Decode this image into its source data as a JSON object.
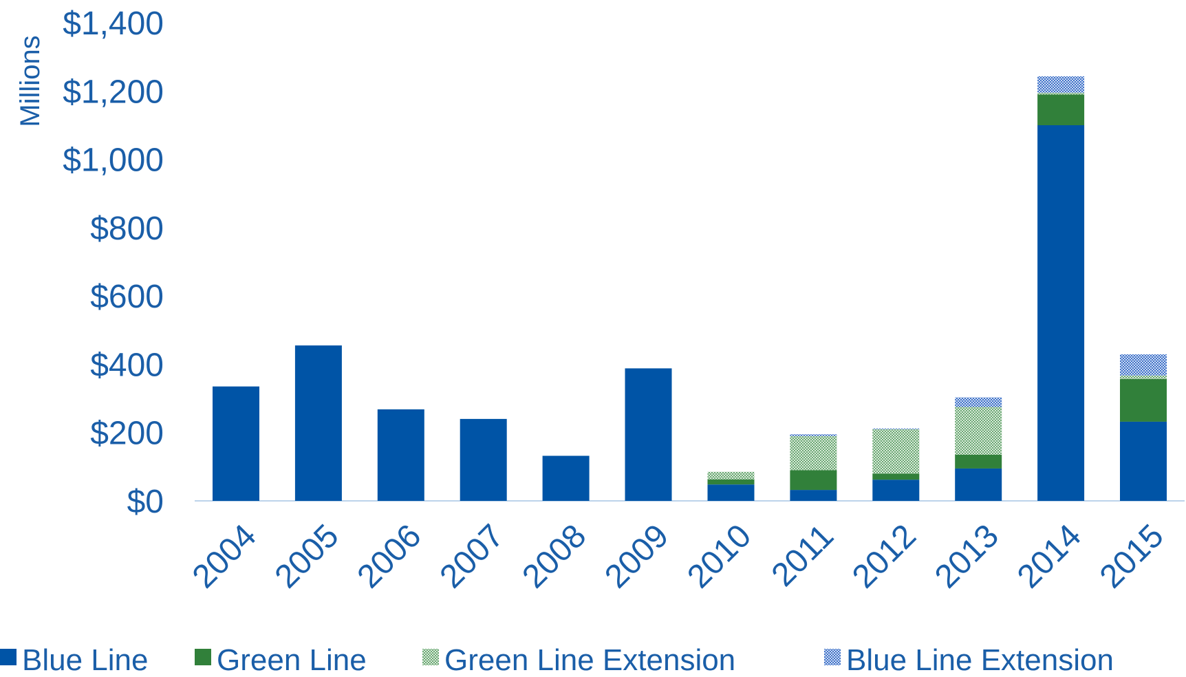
{
  "chart_data": {
    "type": "bar",
    "stacked": true,
    "title": "",
    "xlabel": "",
    "ylabel": "Millions",
    "ylim": [
      0,
      1400
    ],
    "yticks": [
      "$0",
      "$200",
      "$400",
      "$600",
      "$800",
      "$1,000",
      "$1,200",
      "$1,400"
    ],
    "ytick_values": [
      0,
      200,
      400,
      600,
      800,
      1000,
      1200,
      1400
    ],
    "categories": [
      "2004",
      "2005",
      "2006",
      "2007",
      "2008",
      "2009",
      "2010",
      "2011",
      "2012",
      "2013",
      "2014",
      "2015"
    ],
    "series": [
      {
        "name": "Blue Line",
        "color": "#0054a6",
        "pattern": "solid",
        "values": [
          335,
          455,
          268,
          240,
          132,
          388,
          48,
          32,
          62,
          95,
          1100,
          232
        ]
      },
      {
        "name": "Green Line",
        "color": "#31803a",
        "pattern": "solid",
        "values": [
          0,
          0,
          0,
          0,
          0,
          0,
          15,
          58,
          18,
          40,
          90,
          125
        ]
      },
      {
        "name": "Green Line Extension",
        "color": "#31803a",
        "pattern": "dotted-light-green",
        "values": [
          0,
          0,
          0,
          0,
          0,
          0,
          22,
          100,
          130,
          140,
          5,
          10
        ]
      },
      {
        "name": "Blue Line Extension",
        "color": "#4f81d1",
        "pattern": "checkered-blue",
        "values": [
          0,
          0,
          0,
          0,
          0,
          0,
          0,
          5,
          2,
          28,
          48,
          62
        ]
      }
    ],
    "grid": false,
    "legend": "bottom"
  }
}
